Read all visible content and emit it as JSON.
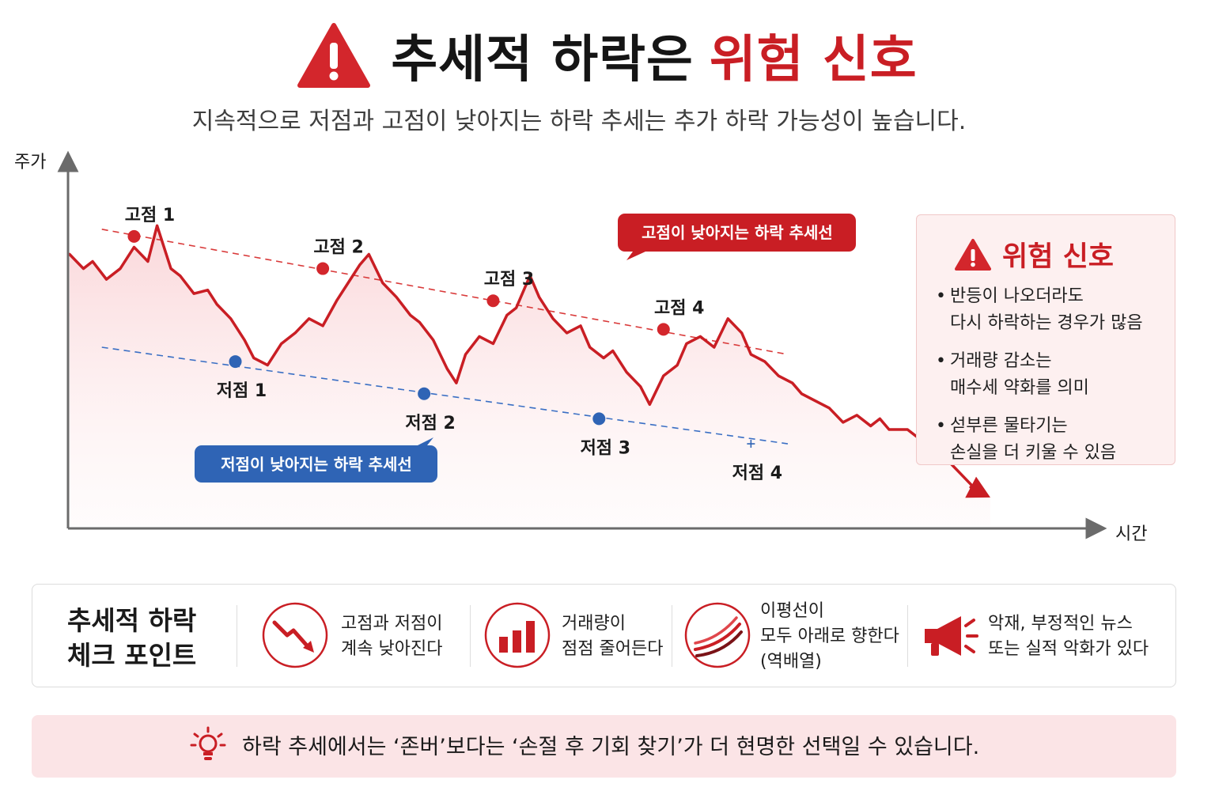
{
  "title": {
    "part1": "추세적 하락은",
    "part2": "위험 신호"
  },
  "subtitle": "지속적으로 저점과 고점이 낮아지는 하락 추세는 추가 하락 가능성이 높습니다.",
  "chart_data": {
    "type": "line",
    "title": "",
    "xlabel": "시간",
    "ylabel": "주가",
    "xlim": [
      0,
      100
    ],
    "ylim": [
      0,
      100
    ],
    "grid": false,
    "series": [
      {
        "name": "",
        "color": "#c91e24",
        "x": [
          0,
          1.5,
          2.5,
          4,
          5.5,
          7,
          8.5,
          9.5,
          11,
          12,
          13.5,
          15,
          16,
          17.5,
          19,
          20,
          21.5,
          23,
          24.5,
          26,
          27.5,
          29,
          30.5,
          31.5,
          32.5,
          34,
          35.5,
          37,
          38,
          39.5,
          41,
          42,
          43,
          44.5,
          46,
          47.5,
          48.5,
          50,
          51,
          52.5,
          54,
          55.5,
          56.5,
          58,
          59,
          60.5,
          62,
          63,
          64.5,
          66,
          67,
          68.5,
          70,
          71.5,
          73,
          74,
          75.5,
          77,
          78.5,
          79.5,
          81,
          82.5,
          84,
          85.5,
          87,
          88,
          89,
          91,
          92.5,
          94,
          95.5,
          97,
          98.5,
          100
        ],
        "y": [
          76,
          72,
          74,
          69,
          72,
          78,
          74,
          84,
          72,
          70,
          65,
          66,
          62,
          58,
          52,
          47,
          45,
          51,
          54,
          58,
          56,
          63,
          69,
          73,
          76,
          68,
          64,
          59,
          57,
          52,
          44,
          40,
          48,
          53,
          51,
          59,
          61,
          70,
          64,
          58,
          54,
          56,
          50,
          47,
          49,
          43,
          39,
          34,
          42,
          45,
          51,
          53,
          50,
          58,
          54,
          48,
          46,
          42,
          40,
          37,
          35,
          33,
          29,
          31,
          28,
          30,
          27,
          27,
          24,
          22,
          18,
          14,
          10,
          8
        ]
      }
    ],
    "highs": [
      {
        "label": "고점 1",
        "x": 7,
        "y": 81
      },
      {
        "label": "고점 2",
        "x": 27.5,
        "y": 72
      },
      {
        "label": "고점 3",
        "x": 46,
        "y": 63
      },
      {
        "label": "고점 4",
        "x": 64.5,
        "y": 55
      }
    ],
    "lows": [
      {
        "label": "저점 1",
        "x": 18,
        "y": 46
      },
      {
        "label": "저점 2",
        "x": 38.5,
        "y": 37
      },
      {
        "label": "저점 3",
        "x": 57.5,
        "y": 30
      },
      {
        "label": "저점 4",
        "x": 74,
        "y": 23
      }
    ],
    "resistance_line": {
      "label": "고점이 낮아지는 하락 추세선",
      "x": [
        3.5,
        78
      ],
      "y": [
        83,
        48
      ],
      "color": "#d93a3a"
    },
    "support_line": {
      "label": "저점이 낮아지는 하락 추세선",
      "x": [
        3.5,
        78
      ],
      "y": [
        50,
        23
      ],
      "color": "#3a6fc4"
    }
  },
  "danger": {
    "title": "위험 신호",
    "items": [
      {
        "line1": "반등이 나오더라도",
        "line2": "다시 하락하는 경우가 많음"
      },
      {
        "line1": "거래량 감소는",
        "line2": "매수세 약화를 의미"
      },
      {
        "line1": "섣부른 물타기는",
        "line2": "손실을 더 키울 수 있음"
      }
    ]
  },
  "checkpoints": {
    "title_line1": "추세적 하락",
    "title_line2": "체크 포인트",
    "items": [
      {
        "icon": "trend-down-icon",
        "lines": [
          "고점과 저점이",
          "계속 낮아진다"
        ]
      },
      {
        "icon": "bar-chart-icon",
        "lines": [
          "거래량이",
          "점점 줄어든다"
        ]
      },
      {
        "icon": "moving-average-icon",
        "lines": [
          "이평선이",
          "모두 아래로 향한다",
          "(역배열)"
        ]
      },
      {
        "icon": "megaphone-icon",
        "lines": [
          "악재, 부정적인 뉴스",
          "또는 실적 악화가 있다"
        ]
      }
    ]
  },
  "tip": {
    "icon": "lightbulb-icon",
    "text": "하락 추세에서는 ‘존버’보다는 ‘손절 후 기회 찾기’가 더 현명한 선택일 수 있습니다."
  },
  "colors": {
    "accent_red": "#c91e24",
    "accent_blue": "#2f64b5",
    "panel_pink": "#fbe4e6"
  }
}
